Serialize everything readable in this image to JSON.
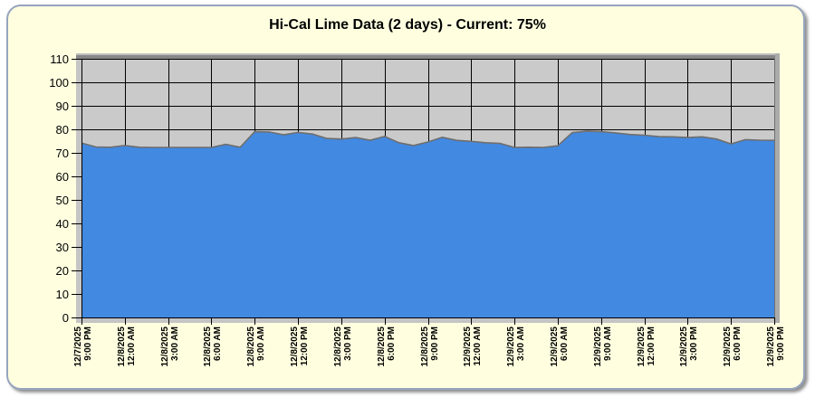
{
  "title": "Hi-Cal Lime Data (2 days) - Current: 75%",
  "colors": {
    "panel_bg": "#FFFFE0",
    "panel_border": "#96A4BE",
    "plot_bg": "#CACACA",
    "bevel": "#C5C5C5",
    "bevel_top_light": "#BEBEBE",
    "bevel_top": "#878787",
    "bevel_right": "#ABABAB",
    "grid": "#000000",
    "series_fill": "#4289E2",
    "series_edge": "#6E6E6E",
    "shadow": "rgba(90,90,90,0.5)",
    "label": "#000000"
  },
  "chart_data": {
    "type": "area",
    "title": "Hi-Cal Lime Data (2 days) - Current: 75%",
    "ylabel": "",
    "xlabel": "",
    "ylim": [
      0,
      110
    ],
    "y_ticks": [
      0,
      10,
      20,
      30,
      40,
      50,
      60,
      70,
      80,
      90,
      100,
      110
    ],
    "grid": true,
    "x_tick_labels": [
      {
        "date": "12/7/2025",
        "time": "9:00 PM"
      },
      {
        "date": "12/8/2025",
        "time": "12:00 AM"
      },
      {
        "date": "12/8/2025",
        "time": "3:00 AM"
      },
      {
        "date": "12/8/2025",
        "time": "6:00 AM"
      },
      {
        "date": "12/8/2025",
        "time": "9:00 AM"
      },
      {
        "date": "12/8/2025",
        "time": "12:00 PM"
      },
      {
        "date": "12/8/2025",
        "time": "3:00 PM"
      },
      {
        "date": "12/8/2025",
        "time": "6:00 PM"
      },
      {
        "date": "12/8/2025",
        "time": "9:00 PM"
      },
      {
        "date": "12/9/2025",
        "time": "12:00 AM"
      },
      {
        "date": "12/9/2025",
        "time": "3:00 AM"
      },
      {
        "date": "12/9/2025",
        "time": "6:00 AM"
      },
      {
        "date": "12/9/2025",
        "time": "9:00 AM"
      },
      {
        "date": "12/9/2025",
        "time": "12:00 PM"
      },
      {
        "date": "12/9/2025",
        "time": "3:00 PM"
      },
      {
        "date": "12/9/2025",
        "time": "6:00 PM"
      },
      {
        "date": "12/9/2025",
        "time": "9:00 PM"
      }
    ],
    "hours_per_point": 1,
    "series": [
      {
        "name": "Hi-Cal Lime %",
        "values": [
          74.2,
          72.5,
          72.4,
          73.1,
          72.4,
          72.3,
          72.3,
          72.3,
          72.3,
          72.3,
          73.6,
          72.4,
          79.0,
          78.9,
          77.7,
          78.7,
          78.0,
          76.1,
          75.9,
          76.5,
          75.4,
          77.0,
          74.3,
          73.1,
          74.6,
          76.6,
          75.3,
          74.9,
          74.3,
          74.0,
          72.3,
          72.4,
          72.3,
          73.0,
          78.6,
          79.2,
          79.0,
          78.5,
          77.8,
          77.5,
          76.9,
          76.8,
          76.5,
          76.8,
          75.9,
          73.8,
          75.6,
          75.4,
          75.3
        ]
      }
    ],
    "current_value": 75
  }
}
